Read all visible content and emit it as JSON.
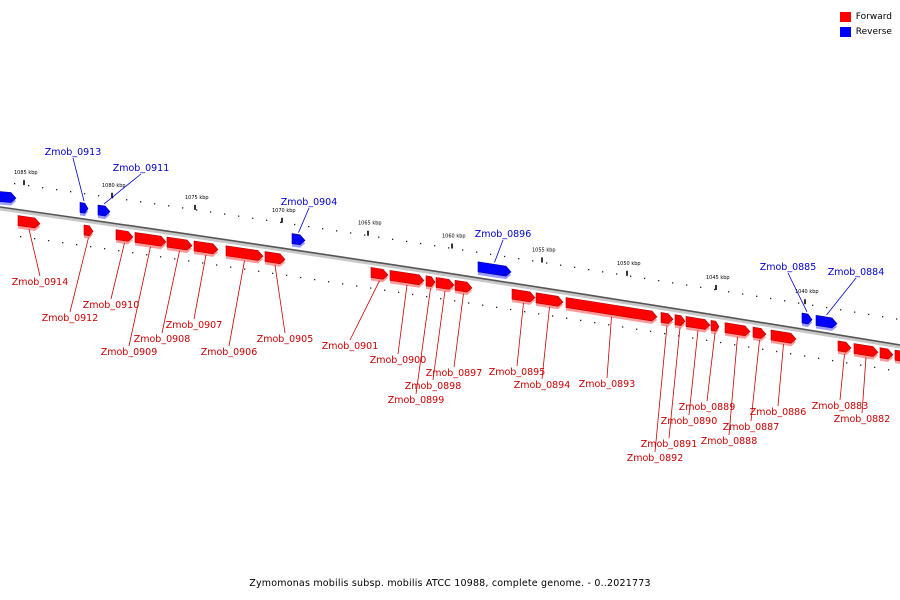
{
  "legend": {
    "forward_label": "Forward",
    "reverse_label": "Reverse",
    "forward_color": "#ff0000",
    "reverse_color": "#0000ff"
  },
  "caption": "Zymomonas mobilis subsp. mobilis ATCC 10988, complete genome. - 0..2021773",
  "scale_labels": [
    "1085 kbp",
    "1080 kbp",
    "1075 kbp",
    "1070 kbp",
    "1065 kbp",
    "1060 kbp",
    "1055 kbp",
    "1050 kbp",
    "1045 kbp",
    "1040 kbp"
  ],
  "genes": [
    {
      "name": "Zmob_0913",
      "strand": "reverse"
    },
    {
      "name": "Zmob_0911",
      "strand": "reverse"
    },
    {
      "name": "Zmob_0904",
      "strand": "reverse"
    },
    {
      "name": "Zmob_0896",
      "strand": "reverse"
    },
    {
      "name": "Zmob_0885",
      "strand": "reverse"
    },
    {
      "name": "Zmob_0884",
      "strand": "reverse"
    },
    {
      "name": "Zmob_0914",
      "strand": "forward"
    },
    {
      "name": "Zmob_0912",
      "strand": "forward"
    },
    {
      "name": "Zmob_0910",
      "strand": "forward"
    },
    {
      "name": "Zmob_0909",
      "strand": "forward"
    },
    {
      "name": "Zmob_0908",
      "strand": "forward"
    },
    {
      "name": "Zmob_0907",
      "strand": "forward"
    },
    {
      "name": "Zmob_0906",
      "strand": "forward"
    },
    {
      "name": "Zmob_0905",
      "strand": "forward"
    },
    {
      "name": "Zmob_0901",
      "strand": "forward"
    },
    {
      "name": "Zmob_0900",
      "strand": "forward"
    },
    {
      "name": "Zmob_0899",
      "strand": "forward"
    },
    {
      "name": "Zmob_0898",
      "strand": "forward"
    },
    {
      "name": "Zmob_0897",
      "strand": "forward"
    },
    {
      "name": "Zmob_0895",
      "strand": "forward"
    },
    {
      "name": "Zmob_0894",
      "strand": "forward"
    },
    {
      "name": "Zmob_0893",
      "strand": "forward"
    },
    {
      "name": "Zmob_0892",
      "strand": "forward"
    },
    {
      "name": "Zmob_0891",
      "strand": "forward"
    },
    {
      "name": "Zmob_0890",
      "strand": "forward"
    },
    {
      "name": "Zmob_0889",
      "strand": "forward"
    },
    {
      "name": "Zmob_0888",
      "strand": "forward"
    },
    {
      "name": "Zmob_0887",
      "strand": "forward"
    },
    {
      "name": "Zmob_0886",
      "strand": "forward"
    },
    {
      "name": "Zmob_0883",
      "strand": "forward"
    },
    {
      "name": "Zmob_0882",
      "strand": "forward"
    }
  ]
}
